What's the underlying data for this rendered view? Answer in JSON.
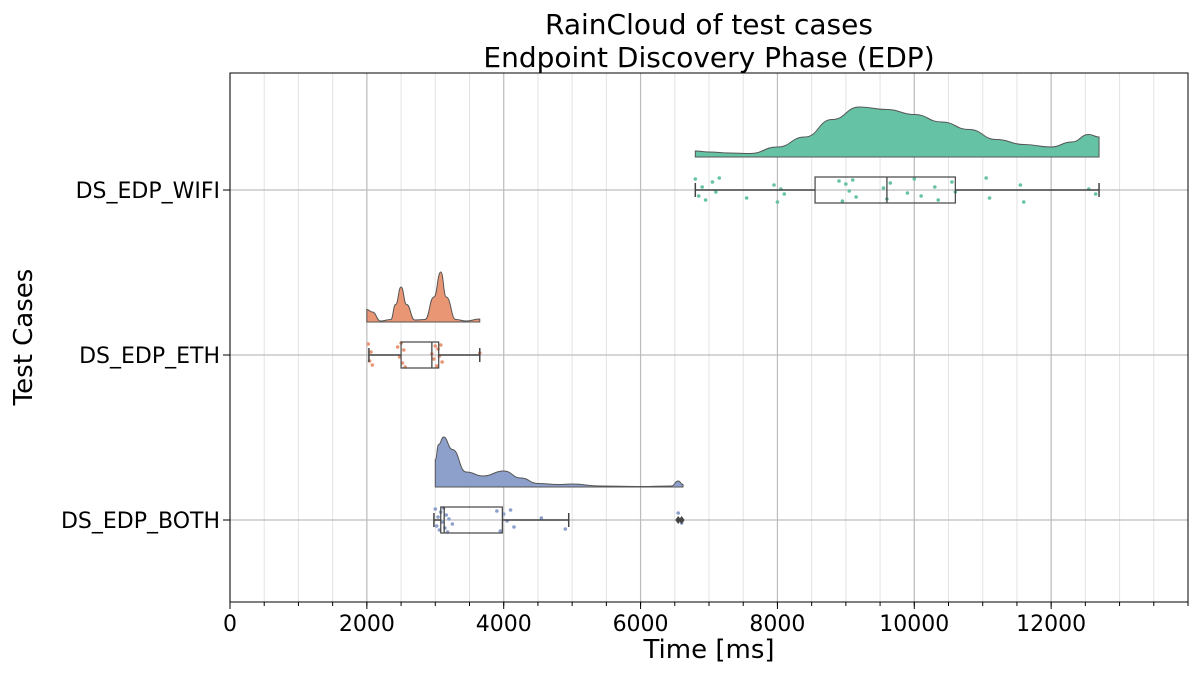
{
  "chart_data": {
    "type": "raincloud",
    "title": "RainCloud of test cases",
    "subtitle": "Endpoint Discovery Phase (EDP)",
    "xlabel": "Time [ms]",
    "ylabel": "Test Cases",
    "xlim": [
      0,
      14000
    ],
    "x_ticks": [
      "0",
      "2000",
      "4000",
      "6000",
      "8000",
      "10000",
      "12000"
    ],
    "x_tick_values": [
      0,
      2000,
      4000,
      6000,
      8000,
      10000,
      12000
    ],
    "x_minor_step": 500,
    "grid": true,
    "categories": [
      "DS_EDP_WIFI",
      "DS_EDP_ETH",
      "DS_EDP_BOTH"
    ],
    "series": [
      {
        "name": "DS_EDP_WIFI",
        "color": "#66c2a5",
        "box": {
          "whisker_low": 6800,
          "q1": 8550,
          "median": 9600,
          "q3": 10600,
          "whisker_high": 12700
        },
        "outliers": [],
        "points": [
          6800,
          6850,
          6900,
          6950,
          7050,
          7100,
          7150,
          7550,
          7950,
          8000,
          8050,
          8100,
          8900,
          8950,
          9000,
          9050,
          9100,
          9150,
          9550,
          9600,
          9650,
          9900,
          10000,
          10100,
          10300,
          10350,
          10550,
          10600,
          11050,
          11100,
          11550,
          11600,
          12550,
          12650
        ],
        "density": [
          [
            6800,
            0.12
          ],
          [
            7000,
            0.1
          ],
          [
            7300,
            0.08
          ],
          [
            7600,
            0.07
          ],
          [
            8000,
            0.2
          ],
          [
            8400,
            0.4
          ],
          [
            8800,
            0.75
          ],
          [
            9200,
            1.0
          ],
          [
            9600,
            0.95
          ],
          [
            10000,
            0.85
          ],
          [
            10400,
            0.7
          ],
          [
            10800,
            0.55
          ],
          [
            11200,
            0.35
          ],
          [
            11600,
            0.25
          ],
          [
            12000,
            0.2
          ],
          [
            12300,
            0.3
          ],
          [
            12550,
            0.45
          ],
          [
            12700,
            0.4
          ]
        ]
      },
      {
        "name": "DS_EDP_ETH",
        "color": "#e99675",
        "box": {
          "whisker_low": 2030,
          "q1": 2500,
          "median": 2950,
          "q3": 3050,
          "whisker_high": 3650
        },
        "outliers": [],
        "points": [
          2020,
          2040,
          2060,
          2080,
          2450,
          2480,
          2500,
          2520,
          2540,
          2560,
          2950,
          2980,
          3000,
          3020,
          3040,
          3060,
          3080,
          3100,
          3650
        ],
        "density": [
          [
            2000,
            0.25
          ],
          [
            2080,
            0.2
          ],
          [
            2200,
            0.02
          ],
          [
            2350,
            0.05
          ],
          [
            2420,
            0.35
          ],
          [
            2500,
            0.7
          ],
          [
            2580,
            0.35
          ],
          [
            2700,
            0.04
          ],
          [
            2850,
            0.05
          ],
          [
            2980,
            0.5
          ],
          [
            3080,
            1.0
          ],
          [
            3160,
            0.5
          ],
          [
            3300,
            0.05
          ],
          [
            3450,
            0.02
          ],
          [
            3650,
            0.06
          ]
        ]
      },
      {
        "name": "DS_EDP_BOTH",
        "color": "#8da0cb",
        "box": {
          "whisker_low": 2980,
          "q1": 3080,
          "median": 3130,
          "q3": 3980,
          "whisker_high": 4950
        },
        "outliers": [
          6550,
          6600
        ],
        "points": [
          3000,
          3020,
          3040,
          3060,
          3080,
          3100,
          3120,
          3140,
          3160,
          3180,
          3200,
          3250,
          3900,
          3950,
          4000,
          4050,
          4100,
          4150,
          4550,
          4900,
          6550,
          6600
        ],
        "density": [
          [
            3000,
            0.55
          ],
          [
            3050,
            0.85
          ],
          [
            3120,
            1.0
          ],
          [
            3250,
            0.75
          ],
          [
            3450,
            0.3
          ],
          [
            3700,
            0.22
          ],
          [
            4000,
            0.32
          ],
          [
            4250,
            0.18
          ],
          [
            4500,
            0.07
          ],
          [
            4800,
            0.05
          ],
          [
            5000,
            0.06
          ],
          [
            5400,
            0.02
          ],
          [
            6000,
            0.01
          ],
          [
            6450,
            0.02
          ],
          [
            6550,
            0.12
          ],
          [
            6620,
            0.05
          ]
        ]
      }
    ]
  }
}
